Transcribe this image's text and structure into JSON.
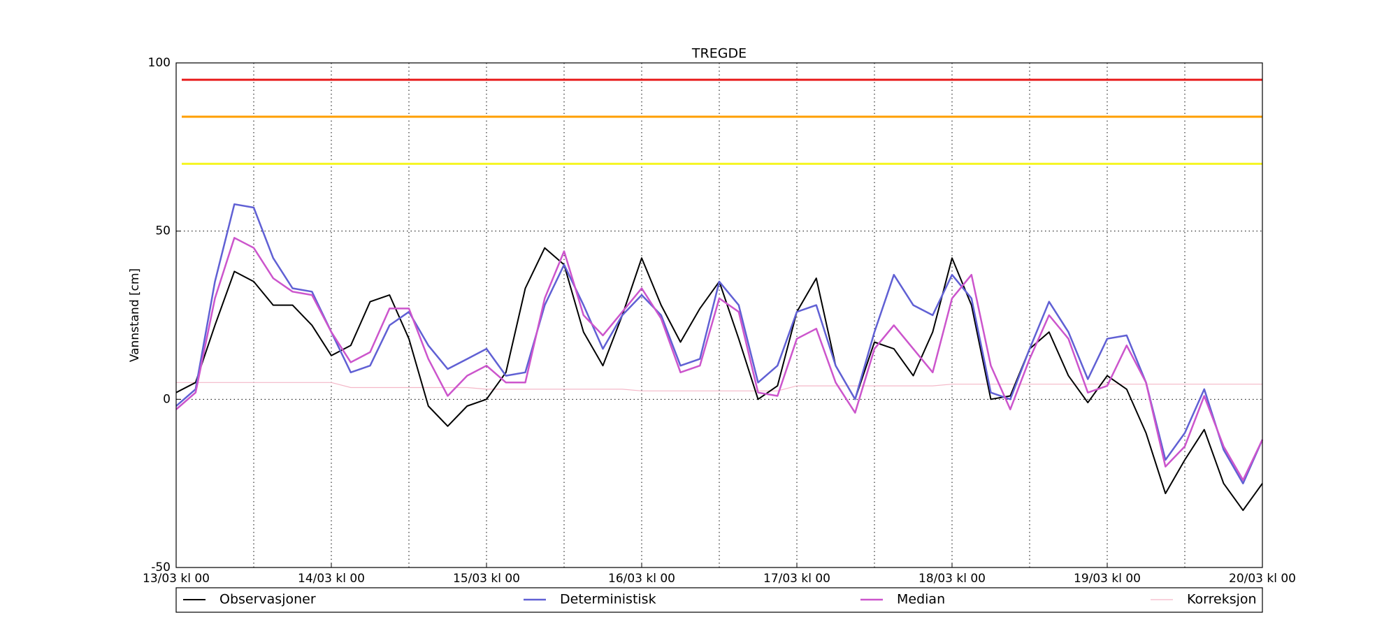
{
  "chart_data": {
    "type": "line",
    "title": "TREGDE",
    "y_label": "Vannstand [cm]",
    "x": [
      "13/03 kl 00",
      "13/03 kl 03",
      "13/03 kl 06",
      "13/03 kl 09",
      "13/03 kl 12",
      "13/03 kl 15",
      "13/03 kl 18",
      "13/03 kl 21",
      "14/03 kl 00",
      "14/03 kl 03",
      "14/03 kl 06",
      "14/03 kl 09",
      "14/03 kl 12",
      "14/03 kl 15",
      "14/03 kl 18",
      "14/03 kl 21",
      "15/03 kl 00",
      "15/03 kl 03",
      "15/03 kl 06",
      "15/03 kl 09",
      "15/03 kl 12",
      "15/03 kl 15",
      "15/03 kl 18",
      "15/03 kl 21",
      "16/03 kl 00",
      "16/03 kl 03",
      "16/03 kl 06",
      "16/03 kl 09",
      "16/03 kl 12",
      "16/03 kl 15",
      "16/03 kl 18",
      "16/03 kl 21",
      "17/03 kl 00",
      "17/03 kl 03",
      "17/03 kl 06",
      "17/03 kl 09",
      "17/03 kl 12",
      "17/03 kl 15",
      "17/03 kl 18",
      "17/03 kl 21",
      "18/03 kl 00",
      "18/03 kl 03",
      "18/03 kl 06",
      "18/03 kl 09",
      "18/03 kl 12",
      "18/03 kl 15",
      "18/03 kl 18",
      "18/03 kl 21",
      "19/03 kl 00",
      "19/03 kl 03",
      "19/03 kl 06",
      "19/03 kl 09",
      "19/03 kl 12",
      "19/03 kl 15",
      "19/03 kl 18",
      "19/03 kl 21",
      "20/03 kl 00"
    ],
    "series": [
      {
        "name": "Observasjoner",
        "color": "#000000",
        "width": 2,
        "values": [
          2,
          5,
          22,
          38,
          35,
          28,
          28,
          22,
          13,
          16,
          29,
          31,
          18,
          -2,
          -8,
          -2,
          0,
          8,
          33,
          45,
          40,
          20,
          10,
          25,
          42,
          28,
          17,
          27,
          35,
          18,
          0,
          4,
          26,
          36,
          10,
          0,
          17,
          15,
          7,
          20,
          42,
          28,
          0,
          1,
          15,
          20,
          7,
          -1,
          7,
          3,
          -10,
          -28,
          -18,
          -9,
          -25,
          -33,
          -25
        ]
      },
      {
        "name": "Deterministisk",
        "color": "#6060d4",
        "width": 2.5,
        "values": [
          -2,
          3,
          35,
          58,
          57,
          42,
          33,
          32,
          20,
          8,
          10,
          22,
          26,
          16,
          9,
          12,
          15,
          7,
          8,
          28,
          40,
          28,
          15,
          25,
          31,
          25,
          10,
          12,
          35,
          28,
          5,
          10,
          26,
          28,
          10,
          0,
          20,
          37,
          28,
          25,
          37,
          30,
          2,
          0,
          15,
          29,
          20,
          6,
          18,
          19,
          5,
          -18,
          -10,
          3,
          -15,
          -25,
          -12
        ]
      },
      {
        "name": "Median",
        "color": "#cc55cc",
        "width": 2.5,
        "values": [
          -3,
          2,
          30,
          48,
          45,
          36,
          32,
          31,
          20,
          11,
          14,
          27,
          27,
          12,
          1,
          7,
          10,
          5,
          5,
          30,
          44,
          25,
          19,
          26,
          33,
          24,
          8,
          10,
          30,
          26,
          2,
          1,
          18,
          21,
          5,
          -4,
          15,
          22,
          15,
          8,
          30,
          37,
          10,
          -3,
          12,
          25,
          18,
          2,
          4,
          16,
          5,
          -20,
          -14,
          1,
          -14,
          -24,
          -12
        ]
      },
      {
        "name": "Korreksjon",
        "color": "#f4b8c8",
        "width": 1.2,
        "values": [
          5,
          5,
          5,
          5,
          5,
          5,
          5,
          5,
          5,
          3.5,
          3.5,
          3.5,
          3.5,
          3.5,
          3.5,
          3.5,
          3,
          3,
          3,
          3,
          3,
          3,
          3,
          3,
          2.5,
          2.5,
          2.5,
          2.5,
          2.5,
          2.5,
          2.5,
          2.5,
          4,
          4,
          4,
          4,
          4,
          4,
          4,
          4,
          4.5,
          4.5,
          4.5,
          4.5,
          4.5,
          4.5,
          4.5,
          4.5,
          4.5,
          4.5,
          4.5,
          4.5,
          4.5,
          4.5,
          4.5,
          4.5,
          4.5
        ]
      }
    ],
    "thresholds": [
      {
        "value": 95,
        "color": "#e81c1c"
      },
      {
        "value": 84,
        "color": "#ff9f00"
      },
      {
        "value": 70,
        "color": "#f5f523"
      }
    ],
    "xlim": [
      "13/03 kl 00",
      "20/03 kl 00"
    ],
    "xticks": [
      "13/03 kl 00",
      "14/03 kl 00",
      "15/03 kl 00",
      "16/03 kl 00",
      "17/03 kl 00",
      "18/03 kl 00",
      "19/03 kl 00",
      "20/03 kl 00"
    ],
    "ylim": [
      -50,
      100
    ],
    "yticks": [
      -50,
      0,
      50,
      100
    ],
    "grid": true,
    "legend": "bottom"
  }
}
